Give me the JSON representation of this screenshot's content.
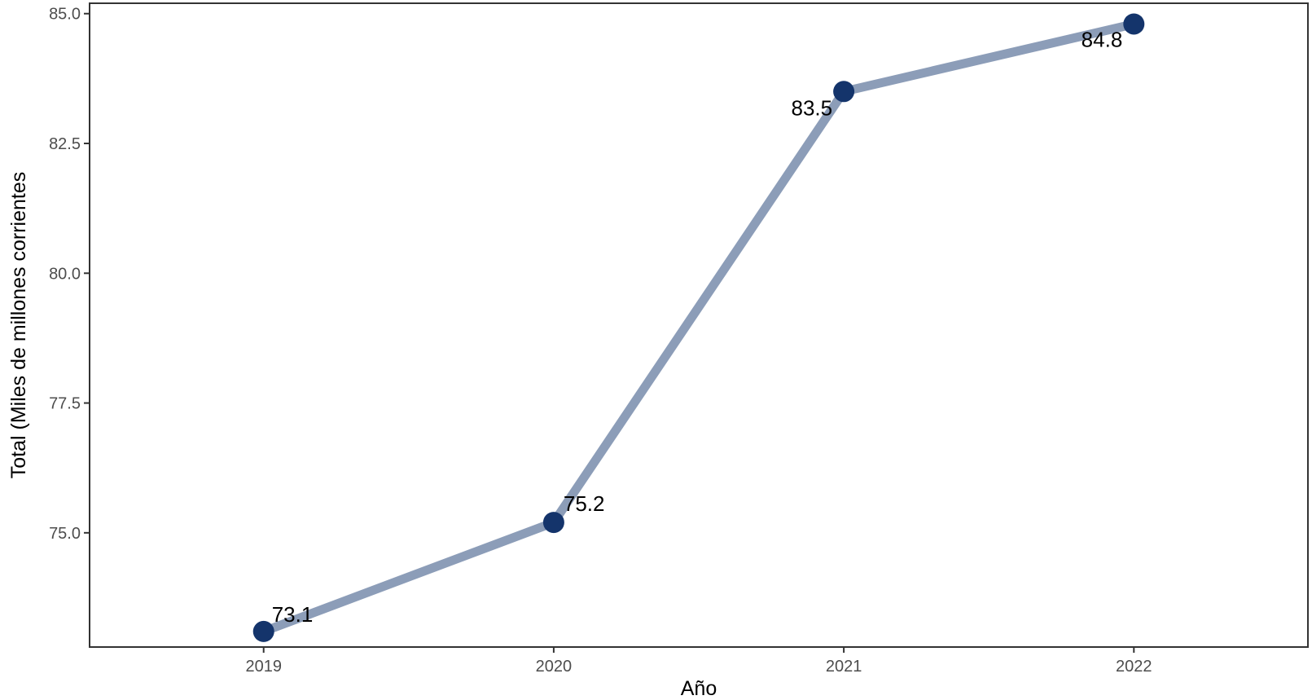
{
  "chart_data": {
    "type": "line",
    "title": "",
    "xlabel": "Año",
    "ylabel": "Total (Miles de millones corrientes",
    "x": [
      "2019",
      "2020",
      "2021",
      "2022"
    ],
    "series": [
      {
        "values": [
          73.1,
          75.2,
          83.5,
          84.8
        ]
      }
    ],
    "data_labels": [
      "73.1",
      "75.2",
      "83.5",
      "84.8"
    ],
    "y_ticks": [
      75.0,
      77.5,
      80.0,
      82.5,
      85.0
    ],
    "y_tick_labels": [
      "75.0",
      "77.5",
      "80.0",
      "82.5",
      "85.0"
    ],
    "ylim": [
      72.8,
      85.2
    ],
    "grid": false,
    "legend": "none",
    "colors": {
      "line": "#8c9db8",
      "marker": "#14346b",
      "axis": "#333333",
      "tick_text": "#4d4d4d"
    }
  }
}
